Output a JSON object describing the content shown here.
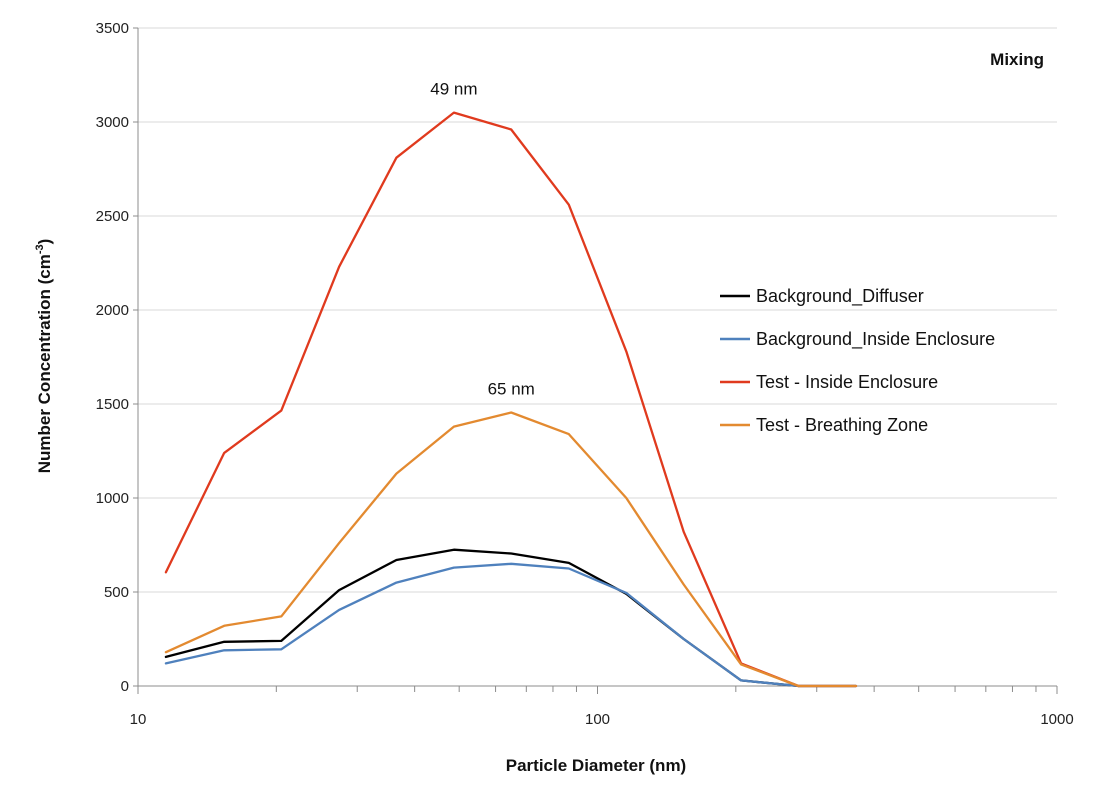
{
  "chart_data": {
    "type": "line",
    "title": "Mixing",
    "xlabel": "Particle Diameter (nm)",
    "ylabel": "Number Concentration (cm",
    "ylabel_sup": "-3",
    "ylabel_close": ")",
    "x_scale": "log",
    "xlim": [
      10,
      1000
    ],
    "ylim": [
      0,
      3500
    ],
    "x_ticks": [
      10,
      100,
      1000
    ],
    "x_tick_labels": [
      "10",
      "100",
      "1000"
    ],
    "y_ticks": [
      0,
      500,
      1000,
      1500,
      2000,
      2500,
      3000,
      3500
    ],
    "y_tick_labels": [
      "0",
      "500",
      "1000",
      "1500",
      "2000",
      "2500",
      "3000",
      "3500"
    ],
    "grid": "horizontal",
    "legend_position": "right",
    "x": [
      11.5,
      15.4,
      20.5,
      27.4,
      36.5,
      48.7,
      64.9,
      86.6,
      115.5,
      154,
      205.4,
      273.8,
      365.2
    ],
    "series": [
      {
        "name": "Background_Diffuser",
        "color": "#000000",
        "values": [
          155,
          235,
          240,
          510,
          670,
          725,
          705,
          655,
          490,
          250,
          30,
          0,
          0
        ]
      },
      {
        "name": "Background_Inside Enclosure",
        "color": "#4f81bd",
        "values": [
          120,
          190,
          195,
          405,
          550,
          630,
          650,
          625,
          495,
          250,
          30,
          0,
          0
        ]
      },
      {
        "name": "Test - Inside Enclosure",
        "color": "#e03a1e",
        "values": [
          605,
          1240,
          1465,
          2230,
          2810,
          3050,
          2960,
          2560,
          1780,
          820,
          120,
          0,
          0
        ]
      },
      {
        "name": "Test - Breathing Zone",
        "color": "#e38a30",
        "values": [
          180,
          320,
          370,
          760,
          1130,
          1380,
          1455,
          1340,
          1000,
          540,
          115,
          0,
          0
        ]
      }
    ],
    "annotations": [
      {
        "text": "49 nm",
        "x": 48.7,
        "y": 3050
      },
      {
        "text": "65 nm",
        "x": 64.9,
        "y": 1455
      }
    ]
  },
  "colors": {
    "grid": "#d9d9d9",
    "axis": "#8c8c8c"
  }
}
